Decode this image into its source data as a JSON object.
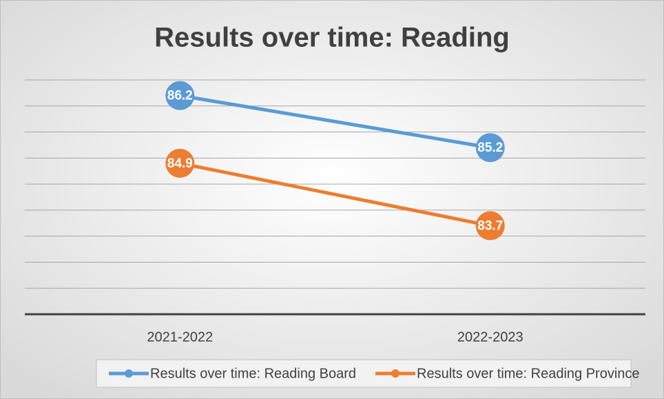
{
  "chart_data": {
    "type": "line",
    "title": "Results over time: Reading",
    "categories": [
      "2021-2022",
      "2022-2023"
    ],
    "series": [
      {
        "name": "Results over time: Reading Board",
        "color": "#5b9bd5",
        "values": [
          86.2,
          85.2
        ]
      },
      {
        "name": "Results over time: Reading Province",
        "color": "#ed7d31",
        "values": [
          84.9,
          83.7
        ]
      }
    ],
    "ylim": [
      82,
      86.5
    ],
    "yticks": [
      82,
      82.5,
      83,
      83.5,
      84,
      84.5,
      85,
      85.5,
      86,
      86.5
    ],
    "grid": true,
    "legend": "bottom"
  }
}
